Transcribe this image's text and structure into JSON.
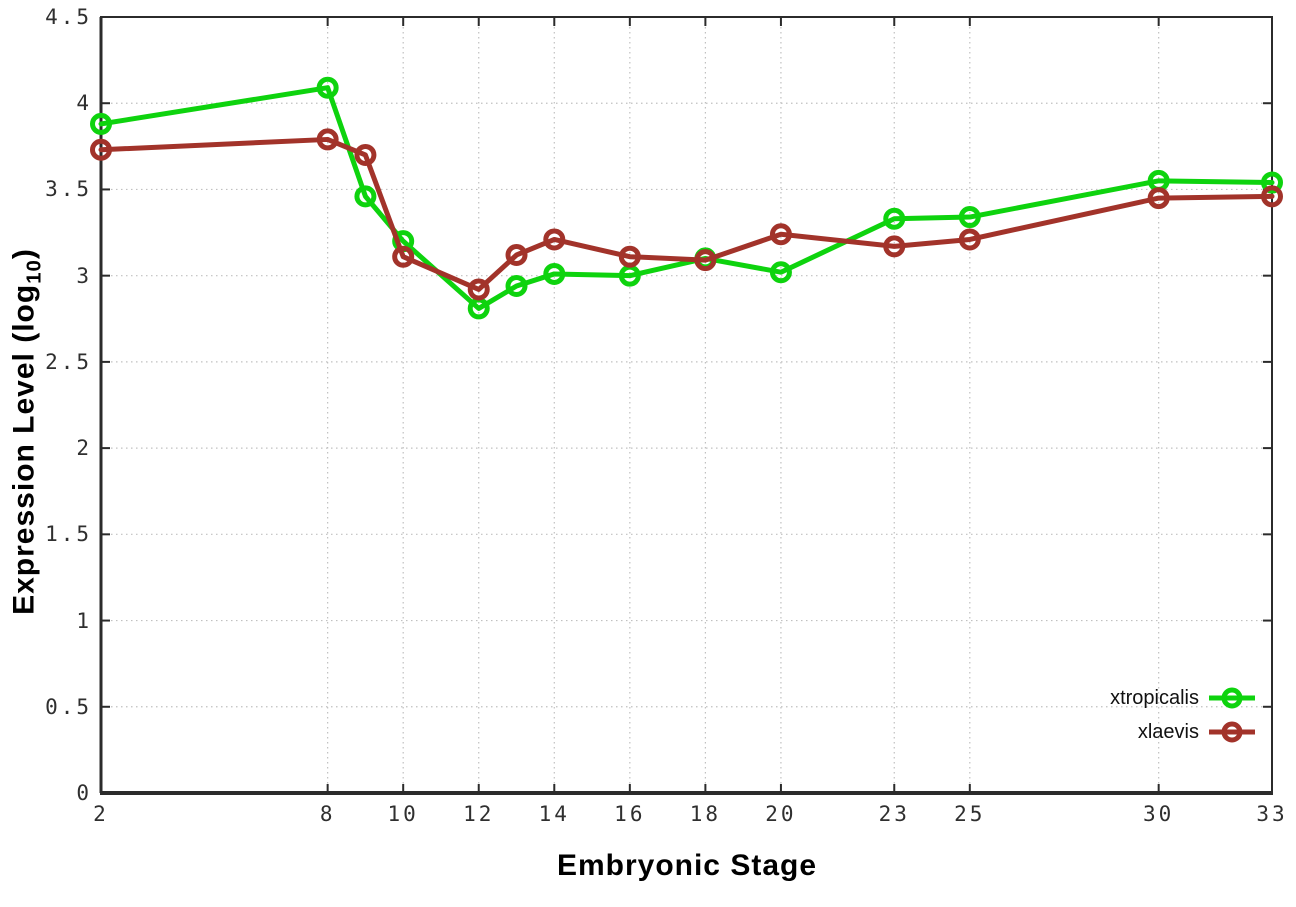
{
  "chart_data": {
    "type": "line",
    "title": "",
    "xlabel": "Embryonic Stage",
    "ylabel": "Expression Level (log10)",
    "ylabel_parts": {
      "main": "Expression Level (log",
      "sub": "10",
      "end": ")"
    },
    "xlim": [
      2,
      33
    ],
    "ylim": [
      0,
      4.5
    ],
    "x": [
      2,
      8,
      9,
      10,
      12,
      13,
      14,
      16,
      18,
      20,
      23,
      25,
      30,
      33
    ],
    "xticks": [
      2,
      8,
      10,
      12,
      14,
      16,
      18,
      20,
      23,
      25,
      30,
      33
    ],
    "xtick_labels": [
      "2",
      "8",
      "10",
      "12",
      "14",
      "16",
      "18",
      "20",
      "23",
      "25",
      "30",
      "33"
    ],
    "yticks": [
      0,
      0.5,
      1,
      1.5,
      2,
      2.5,
      3,
      3.5,
      4,
      4.5
    ],
    "ytick_labels": [
      "0",
      "0.5",
      "1",
      "1.5",
      "2",
      "2.5",
      "3",
      "3.5",
      "4",
      "4.5"
    ],
    "grid": true,
    "legend_position": "inside-bottom-right",
    "series": [
      {
        "name": "xtropicalis",
        "color": "#0ed30e",
        "marker": "open-circle",
        "values": [
          3.88,
          4.09,
          3.46,
          3.2,
          2.81,
          2.94,
          3.01,
          3.0,
          3.1,
          3.02,
          3.33,
          3.34,
          3.55,
          3.54
        ]
      },
      {
        "name": "xlaevis",
        "color": "#a2332a",
        "marker": "open-circle",
        "values": [
          3.73,
          3.79,
          3.7,
          3.11,
          2.92,
          3.12,
          3.21,
          3.11,
          3.09,
          3.24,
          3.17,
          3.21,
          3.45,
          3.46
        ]
      }
    ],
    "style": {
      "grid_color": "#c0c0c0",
      "axis_color": "#2b2b2b",
      "text_color": "#2f2f2f",
      "background": "#ffffff"
    }
  }
}
